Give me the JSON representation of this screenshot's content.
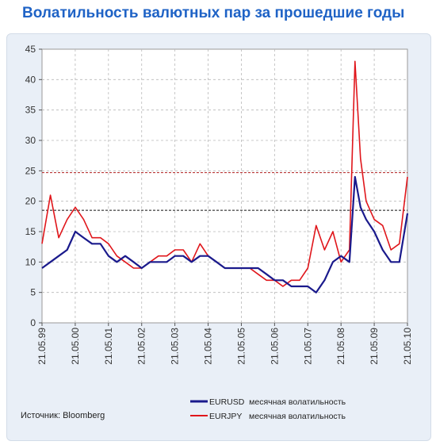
{
  "title": "Волатильность валютных пар за прошедшие годы",
  "source": "Источник: Bloomberg",
  "colors": {
    "title": "#1f63c6",
    "panel": "#e9eff7",
    "eurusd": "#1a1a8c",
    "eurjpy": "#e0161b",
    "grid": "#b9b9b9",
    "ref_eurusd": "#111111",
    "ref_eurjpy": "#b02020"
  },
  "chart_data": {
    "type": "line",
    "title": "Волатильность валютных пар за прошедшие годы",
    "xlabel": "",
    "ylabel": "",
    "ylim": [
      0,
      45
    ],
    "yticks": [
      0,
      5,
      10,
      15,
      20,
      25,
      30,
      35,
      40,
      45
    ],
    "xlim": [
      "1999-05-21",
      "2010-05-21"
    ],
    "xticks": [
      "21.05.99",
      "21.05.00",
      "21.05.01",
      "21.05.02",
      "21.05.03",
      "21.05.04",
      "21.05.05",
      "21.05.06",
      "21.05.07",
      "21.05.08",
      "21.05.09",
      "21.05.10"
    ],
    "grid": true,
    "legend_position": "bottom-right",
    "reference_lines": [
      {
        "series": "EURUSD",
        "y": 18.5,
        "style": "dashed"
      },
      {
        "series": "EURJPY",
        "y": 24.7,
        "style": "dashed"
      }
    ],
    "series": [
      {
        "name": "EURUSD",
        "legend_label": "EURUSD  месячная волатильность",
        "x": [
          "1999-05-21",
          "1999-08-21",
          "1999-11-21",
          "2000-02-21",
          "2000-05-21",
          "2000-08-21",
          "2000-11-21",
          "2001-02-21",
          "2001-05-21",
          "2001-08-21",
          "2001-11-21",
          "2002-02-21",
          "2002-05-21",
          "2002-08-21",
          "2002-11-21",
          "2003-02-21",
          "2003-05-21",
          "2003-08-21",
          "2003-11-21",
          "2004-02-21",
          "2004-05-21",
          "2004-08-21",
          "2004-11-21",
          "2005-02-21",
          "2005-05-21",
          "2005-08-21",
          "2005-11-21",
          "2006-02-21",
          "2006-05-21",
          "2006-08-21",
          "2006-11-21",
          "2007-02-21",
          "2007-05-21",
          "2007-08-21",
          "2007-11-21",
          "2008-02-21",
          "2008-05-21",
          "2008-08-21",
          "2008-10-21",
          "2008-12-21",
          "2009-02-21",
          "2009-05-21",
          "2009-08-21",
          "2009-11-21",
          "2010-02-21",
          "2010-05-21"
        ],
        "y": [
          9,
          10,
          11,
          12,
          15,
          14,
          13,
          13,
          11,
          10,
          11,
          10,
          9,
          10,
          10,
          10,
          11,
          11,
          10,
          11,
          11,
          10,
          9,
          9,
          9,
          9,
          9,
          8,
          7,
          7,
          6,
          6,
          6,
          5,
          7,
          10,
          11,
          10,
          24,
          19,
          17,
          15,
          12,
          10,
          10,
          18
        ]
      },
      {
        "name": "EURJPY",
        "legend_label": "EURJPY   месячная волатильность",
        "x": [
          "1999-05-21",
          "1999-08-21",
          "1999-11-21",
          "2000-02-21",
          "2000-05-21",
          "2000-08-21",
          "2000-11-21",
          "2001-02-21",
          "2001-05-21",
          "2001-08-21",
          "2001-11-21",
          "2002-02-21",
          "2002-05-21",
          "2002-08-21",
          "2002-11-21",
          "2003-02-21",
          "2003-05-21",
          "2003-08-21",
          "2003-11-21",
          "2004-02-21",
          "2004-05-21",
          "2004-08-21",
          "2004-11-21",
          "2005-02-21",
          "2005-05-21",
          "2005-08-21",
          "2005-11-21",
          "2006-02-21",
          "2006-05-21",
          "2006-08-21",
          "2006-11-21",
          "2007-02-21",
          "2007-05-21",
          "2007-08-21",
          "2007-11-21",
          "2008-02-21",
          "2008-05-21",
          "2008-08-21",
          "2008-10-21",
          "2008-12-21",
          "2009-02-21",
          "2009-05-21",
          "2009-08-21",
          "2009-11-21",
          "2010-02-21",
          "2010-05-21"
        ],
        "y": [
          13,
          21,
          14,
          17,
          19,
          17,
          14,
          14,
          13,
          11,
          10,
          9,
          9,
          10,
          11,
          11,
          12,
          12,
          10,
          13,
          11,
          10,
          9,
          9,
          9,
          9,
          8,
          7,
          7,
          6,
          7,
          7,
          9,
          16,
          12,
          15,
          10,
          12,
          43,
          27,
          20,
          17,
          16,
          12,
          13,
          24
        ]
      }
    ]
  }
}
